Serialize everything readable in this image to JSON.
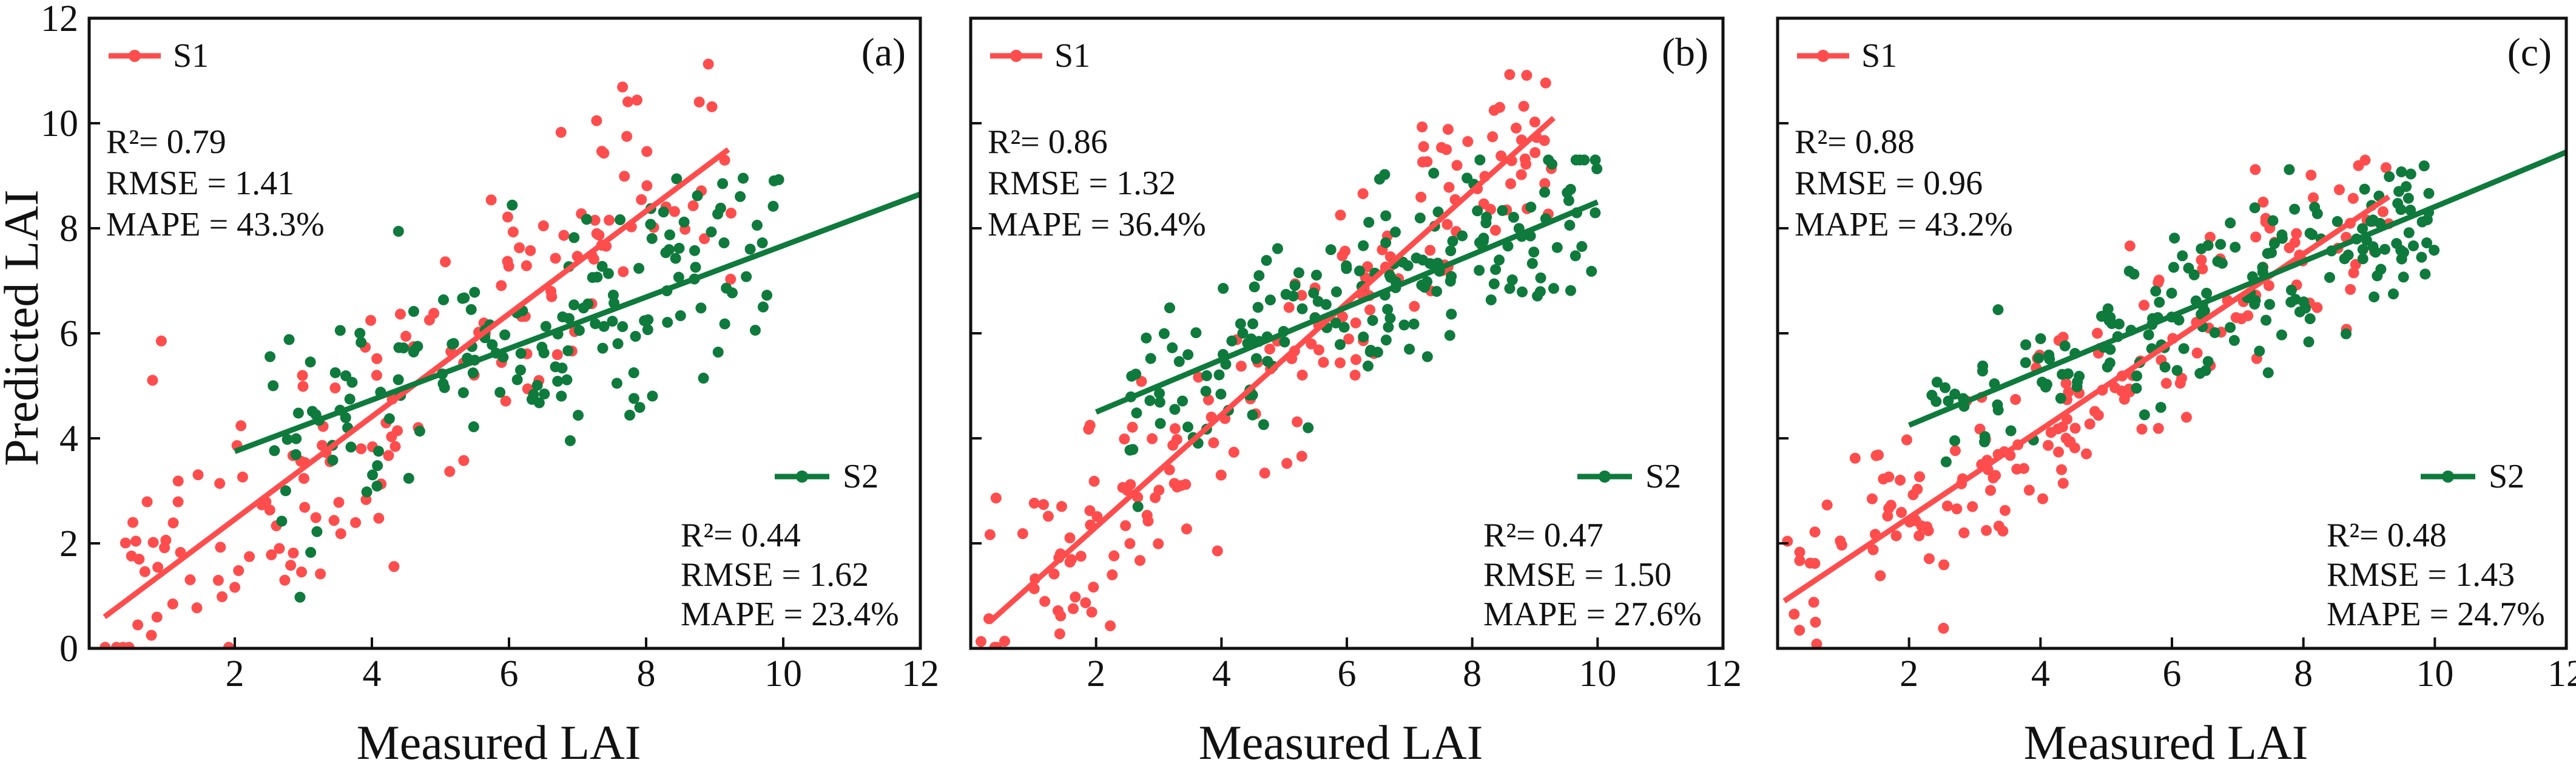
{
  "chart_data": {
    "type": "scatter",
    "shared": {
      "xlabel": "Measured  LAI",
      "ylabel": "Predicted  LAI",
      "xlim": [
        0,
        12
      ],
      "ylim": [
        0,
        12
      ],
      "xticks": [
        2,
        4,
        6,
        8,
        10,
        12
      ],
      "yticks": [
        0,
        2,
        4,
        6,
        8,
        10,
        12
      ]
    },
    "series_colors": {
      "S1": "#ff4d4d",
      "S2": "#0e7a3c"
    },
    "panels": [
      {
        "label": "(a)",
        "series": [
          {
            "name": "S1",
            "stats": {
              "r2": "R²= 0.79",
              "rmse": "RMSE = 1.41",
              "mape": "MAPE = 43.3%"
            },
            "fit_line": {
              "x": [
                0.1,
                9.2
              ],
              "y": [
                0.6,
                9.5
              ]
            }
          },
          {
            "name": "S2",
            "stats": {
              "r2": "R²= 0.44",
              "rmse": "RMSE = 1.62",
              "mape": "MAPE = 23.4%"
            },
            "fit_line": {
              "x": [
                2.0,
                12.0
              ],
              "y": [
                3.75,
                8.65
              ]
            }
          }
        ]
      },
      {
        "label": "(b)",
        "series": [
          {
            "name": "S1",
            "stats": {
              "r2": "R²= 0.86",
              "rmse": "RMSE = 1.32",
              "mape": "MAPE = 36.4%"
            },
            "fit_line": {
              "x": [
                0.3,
                9.3
              ],
              "y": [
                0.5,
                10.1
              ]
            }
          },
          {
            "name": "S2",
            "stats": {
              "r2": "R²= 0.47",
              "rmse": "RMSE = 1.50",
              "mape": "MAPE = 27.6%"
            },
            "fit_line": {
              "x": [
                2.0,
                10.0
              ],
              "y": [
                4.5,
                8.5
              ]
            }
          }
        ]
      },
      {
        "label": "(c)",
        "series": [
          {
            "name": "S1",
            "stats": {
              "r2": "R²= 0.88",
              "rmse": "RMSE = 0.96",
              "mape": "MAPE = 43.2%"
            },
            "fit_line": {
              "x": [
                0.1,
                9.3
              ],
              "y": [
                0.9,
                8.6
              ]
            }
          },
          {
            "name": "S2",
            "stats": {
              "r2": "R²= 0.48",
              "rmse": "RMSE = 1.43",
              "mape": "MAPE = 24.7%"
            },
            "fit_line": {
              "x": [
                2.0,
                12.0
              ],
              "y": [
                4.25,
                9.45
              ]
            }
          }
        ]
      }
    ]
  }
}
